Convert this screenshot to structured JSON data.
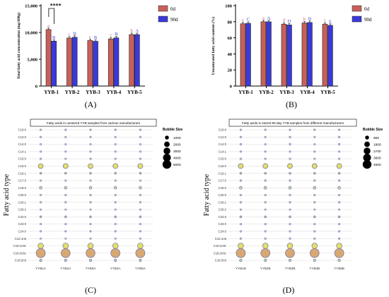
{
  "panel_labels": [
    "(A)",
    "(B)",
    "(C)",
    "(D)"
  ],
  "colors": {
    "day0": "#c8605a",
    "day90": "#3a3ad8",
    "bubble_fill": "#e9f0f6",
    "bubble_edge": "#6d6f9e"
  },
  "chart_data": [
    {
      "panel": "(A)",
      "type": "bar",
      "ylabel": "Total fatty acid concentration (mg/100g)",
      "ylim": [
        0,
        15000
      ],
      "yticks": [
        "0",
        "5,000",
        "10,000",
        "15,000"
      ],
      "categories": [
        "YYB-1",
        "YYB-2",
        "YYB-3",
        "YYB-4",
        "YYB-5"
      ],
      "series": [
        {
          "name": "0d",
          "values": [
            10550,
            8950,
            8500,
            8800,
            9600
          ],
          "letters": [
            "a",
            "c",
            "c",
            "c",
            "b"
          ]
        },
        {
          "name": "90d",
          "values": [
            8380,
            9100,
            8350,
            9000,
            9600
          ],
          "letters": [
            "B",
            "B",
            "B",
            "B",
            "A"
          ]
        }
      ],
      "significance": "****"
    },
    {
      "panel": "(B)",
      "type": "bar",
      "ylabel": "Unsaturated fatty acid content (%)",
      "ylim": [
        0,
        100
      ],
      "yticks": [
        "0",
        "20",
        "40",
        "60",
        "80",
        "100"
      ],
      "categories": [
        "YYB-1",
        "YYB-2",
        "YYB-3",
        "YYB-4",
        "YYB-5"
      ],
      "series": [
        {
          "name": "0d",
          "values": [
            77.5,
            80,
            77,
            78.5,
            77
          ],
          "letters": [
            "c",
            "a",
            "d",
            "b",
            "c"
          ]
        },
        {
          "name": "90d",
          "values": [
            78,
            80,
            76,
            79,
            75.5
          ],
          "letters": [
            "C",
            "A",
            "D",
            "B",
            "E"
          ]
        }
      ]
    },
    {
      "panel": "(C)",
      "type": "scatter",
      "title": "Fatty acids in unstored YYB samples from various manufacturers",
      "ylabel": "Fatty acid type",
      "rows": [
        "C10:0",
        "C12:0",
        "C14:0",
        "C14:1",
        "C15:0",
        "C16:0",
        "C16:1",
        "C17:0",
        "C18:0",
        "C20:0",
        "C20:1",
        "C20:2",
        "C22:0",
        "C23:0",
        "C24:0",
        "C22:1n9",
        "C18:1n9c",
        "C18:2n6c",
        "C18:3n3"
      ],
      "columns": [
        "YYB1A",
        "YYB2A",
        "YYB3A",
        "YYB4A",
        "YYB5A"
      ],
      "legend_title": "Bubble Size",
      "legend_values": [
        1000,
        2000,
        3000,
        4000,
        5000
      ],
      "values": [
        [
          80,
          80,
          80,
          80,
          80
        ],
        [
          150,
          80,
          150,
          80,
          150
        ],
        [
          150,
          80,
          150,
          150,
          150
        ],
        [
          80,
          80,
          80,
          80,
          80
        ],
        [
          150,
          80,
          150,
          80,
          150
        ],
        [
          1400,
          1500,
          1400,
          1500,
          1500
        ],
        [
          200,
          200,
          200,
          200,
          200
        ],
        [
          150,
          150,
          150,
          150,
          150
        ],
        [
          400,
          400,
          400,
          400,
          400
        ],
        [
          150,
          150,
          150,
          150,
          150
        ],
        [
          150,
          150,
          150,
          150,
          150
        ],
        [
          80,
          80,
          80,
          80,
          80
        ],
        [
          200,
          200,
          200,
          200,
          200
        ],
        [
          150,
          150,
          150,
          150,
          150
        ],
        [
          150,
          150,
          150,
          150,
          150
        ],
        [
          150,
          150,
          150,
          150,
          150
        ],
        [
          1800,
          1800,
          1800,
          1800,
          1800
        ],
        [
          5000,
          4800,
          4800,
          4900,
          5000
        ],
        [
          300,
          300,
          300,
          300,
          300
        ]
      ]
    },
    {
      "panel": "(D)",
      "type": "scatter",
      "title": "Fatty acids in stored 90-day YYB samples from different manufacturers",
      "ylabel": "Fatty acid type",
      "rows": [
        "C10:0",
        "C12:0",
        "C14:0",
        "C14:1",
        "C15:0",
        "C16:0",
        "C16:1",
        "C17:0",
        "C18:0",
        "C20:0",
        "C20:1",
        "C20:2",
        "C22:0",
        "C23:0",
        "C24:0",
        "C22:1n9",
        "C18:1n9c",
        "C18:2n6c",
        "C18:3n3"
      ],
      "columns": [
        "YYB1B",
        "YYB2B",
        "YYB3B",
        "YYB4B",
        "YYB5B"
      ],
      "legend_title": "Bubble Size",
      "legend_values": [
        900,
        1800,
        2700,
        3600,
        4500
      ],
      "values": [
        [
          80,
          80,
          80,
          80,
          80
        ],
        [
          150,
          80,
          150,
          80,
          150
        ],
        [
          150,
          80,
          150,
          80,
          150
        ],
        [
          80,
          80,
          80,
          80,
          80
        ],
        [
          150,
          80,
          150,
          80,
          150
        ],
        [
          1300,
          1300,
          1300,
          1300,
          1300
        ],
        [
          200,
          200,
          200,
          200,
          200
        ],
        [
          150,
          150,
          150,
          150,
          150
        ],
        [
          400,
          400,
          400,
          400,
          400
        ],
        [
          150,
          150,
          150,
          150,
          150
        ],
        [
          150,
          150,
          150,
          150,
          150
        ],
        [
          80,
          80,
          80,
          80,
          80
        ],
        [
          200,
          200,
          200,
          200,
          200
        ],
        [
          150,
          150,
          150,
          150,
          150
        ],
        [
          150,
          150,
          150,
          150,
          150
        ],
        [
          150,
          150,
          150,
          150,
          150
        ],
        [
          1600,
          1600,
          1600,
          1600,
          1600
        ],
        [
          4500,
          4400,
          4400,
          4400,
          4500
        ],
        [
          300,
          300,
          300,
          300,
          300
        ]
      ]
    }
  ]
}
